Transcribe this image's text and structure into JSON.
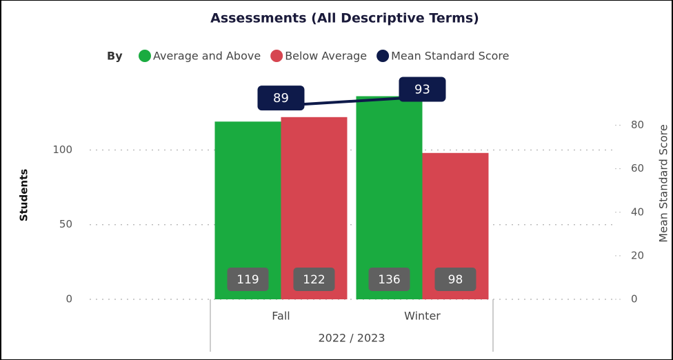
{
  "chart_data": {
    "type": "combo",
    "title": "Assessments (All Descriptive Terms)",
    "legend_title": "By",
    "categories": [
      "Fall",
      "Winter"
    ],
    "group_label": "2022 / 2023",
    "y_label": "Students",
    "y2_label": "Mean Standard Score",
    "series": [
      {
        "name": "Average and Above",
        "color": "#1aab40",
        "type": "bar",
        "values": [
          119,
          136
        ]
      },
      {
        "name": "Below Average",
        "color": "#d64550",
        "type": "bar",
        "values": [
          122,
          98
        ]
      },
      {
        "name": "Mean Standard Score",
        "color": "#0e1a4a",
        "type": "line",
        "axis": "y2",
        "values": [
          89,
          93
        ]
      }
    ],
    "ylim": [
      0,
      145
    ],
    "yticks": [
      0,
      50,
      100
    ],
    "y2lim": [
      0,
      99.5
    ],
    "y2ticks": [
      0,
      20,
      40,
      60,
      80
    ],
    "grid": true
  }
}
